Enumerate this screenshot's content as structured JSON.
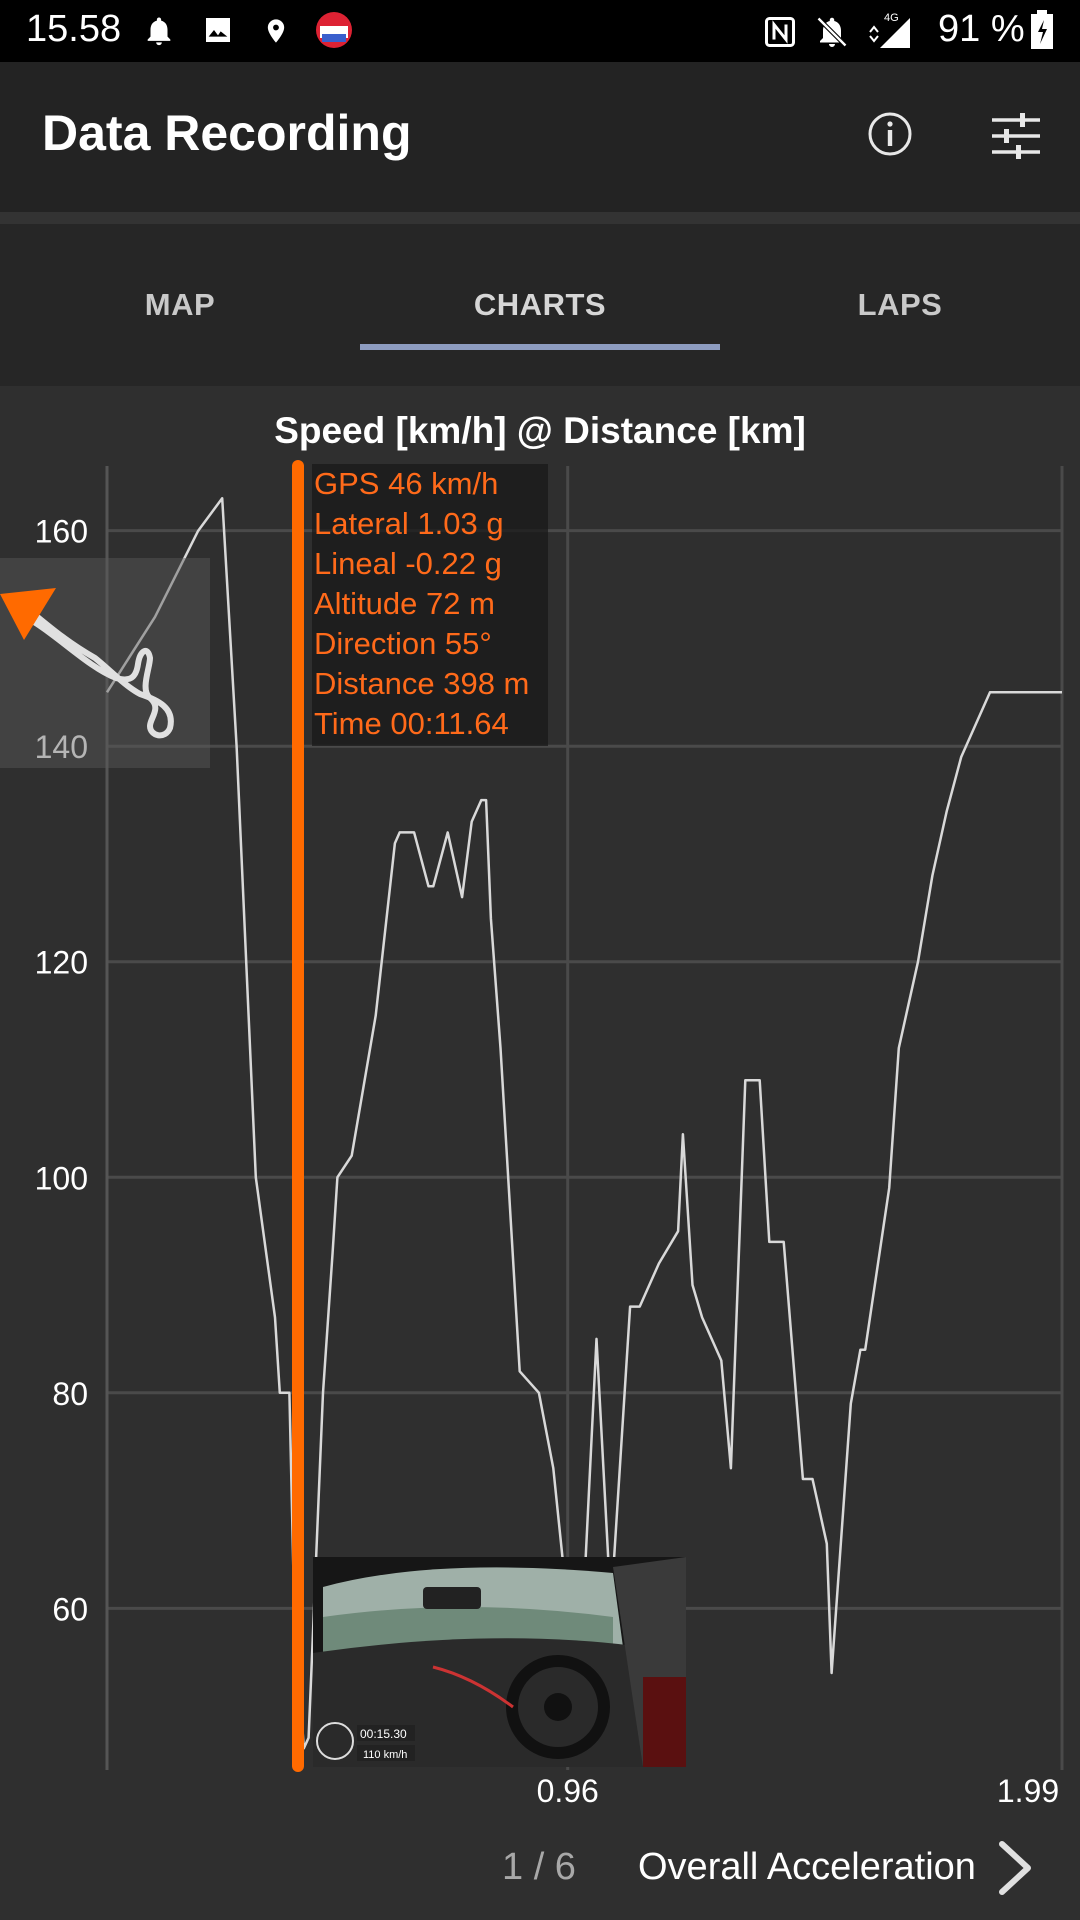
{
  "status_bar": {
    "time": "15.58",
    "network": "4G",
    "battery": "91 %",
    "icons": [
      "bell-icon",
      "image-icon",
      "location-icon",
      "app-badge-icon",
      "nfc-icon",
      "mute-icon",
      "signal-icon",
      "battery-icon"
    ]
  },
  "app_bar": {
    "title": "Data Recording",
    "actions": [
      "info-icon",
      "settings-sliders-icon"
    ]
  },
  "tabs": [
    {
      "label": "MAP",
      "active": false
    },
    {
      "label": "CHARTS",
      "active": true
    },
    {
      "label": "LAPS",
      "active": false
    }
  ],
  "colors": {
    "accent": "#ff6a00",
    "tab_indicator": "#8d9cc0",
    "background": "#2f2f2f",
    "line": "#d9d9d9"
  },
  "chart_data": {
    "type": "line",
    "title": "Speed [km/h] @ Distance [km]",
    "xlabel": "Distance [km]",
    "ylabel": "Speed [km/h]",
    "yticks": [
      60,
      80,
      100,
      120,
      140,
      160
    ],
    "xticks": [
      0.96,
      1.99
    ],
    "xlim": [
      0,
      1.99
    ],
    "ylim": [
      45,
      166
    ],
    "grid": true,
    "series": [
      {
        "x": [
          0.0,
          0.1,
          0.19,
          0.24,
          0.27,
          0.31,
          0.35,
          0.36,
          0.38,
          0.39,
          0.41,
          0.42,
          0.45,
          0.47,
          0.48,
          0.51,
          0.56,
          0.6,
          0.61,
          0.64,
          0.67,
          0.68,
          0.71,
          0.74,
          0.76,
          0.78,
          0.79,
          0.8,
          0.82,
          0.86,
          0.9,
          0.93,
          0.96,
          0.97,
          0.99,
          1.02,
          1.05,
          1.09,
          1.11,
          1.15,
          1.19,
          1.2,
          1.22,
          1.24,
          1.28,
          1.3,
          1.33,
          1.36,
          1.38,
          1.41,
          1.45,
          1.47,
          1.5,
          1.51,
          1.55,
          1.57,
          1.58,
          1.63,
          1.65,
          1.69,
          1.72,
          1.75,
          1.78,
          1.84,
          1.92,
          1.97,
          1.99
        ],
        "y": [
          145,
          152,
          160,
          163,
          140,
          100,
          87,
          80,
          80,
          60,
          47,
          48,
          80,
          93,
          100,
          102,
          115,
          131,
          132,
          132,
          127,
          127,
          132,
          126,
          133,
          135,
          135,
          124,
          112,
          82,
          80,
          73,
          60,
          61,
          58,
          85,
          60,
          88,
          88,
          92,
          95,
          104,
          90,
          87,
          83,
          73,
          109,
          109,
          94,
          94,
          72,
          72,
          66,
          54,
          79,
          84,
          84,
          99,
          112,
          120,
          128,
          134,
          139,
          145,
          145,
          145,
          145
        ]
      }
    ],
    "cursor": {
      "readout": [
        "GPS 46 km/h",
        "Lateral 1.03 g",
        "Lineal -0.22 g",
        "Altitude 72 m",
        "Direction 55°",
        "Distance 398 m",
        "Time 00:11.64"
      ]
    }
  },
  "video_overlay": {
    "time": "00:15.30",
    "speed": "110 km/h"
  },
  "pager": {
    "position": "1 / 6",
    "next_label": "Overall Acceleration"
  }
}
